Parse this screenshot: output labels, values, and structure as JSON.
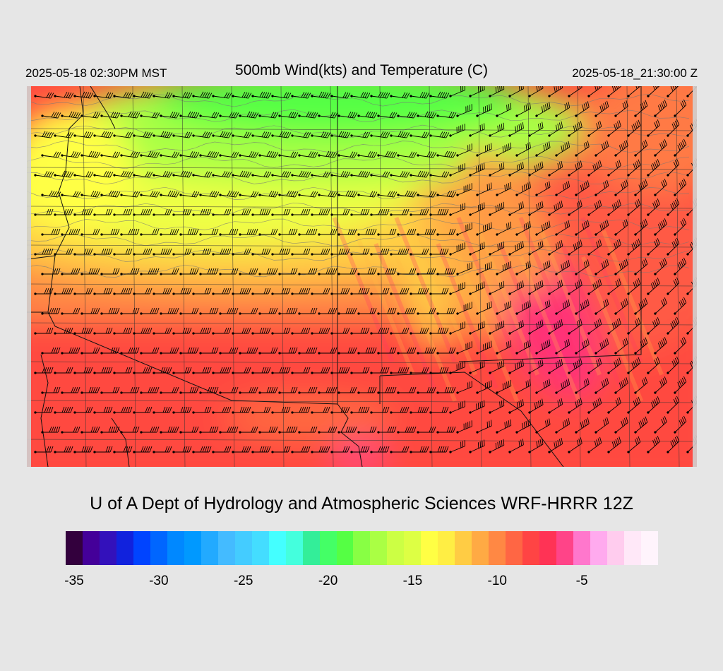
{
  "header": {
    "local_time": "2025-05-18 02:30PM MST",
    "title": "500mb Wind(kts) and Temperature (C)",
    "valid_time": "2025-05-18_21:30:00 Z"
  },
  "map": {
    "field": "500mb temperature (C) with wind barbs (kts)",
    "temperature_range_c": [
      -22,
      -5
    ],
    "background_regions": [
      {
        "region": "north-central",
        "temp_c": -20,
        "color": "#66ff44"
      },
      {
        "region": "north-west",
        "temp_c": -16,
        "color": "#ddff44"
      },
      {
        "region": "central",
        "temp_c": -12,
        "color": "#ffaa44"
      },
      {
        "region": "south",
        "temp_c": -9,
        "color": "#ff4444"
      },
      {
        "region": "east-band",
        "temp_c": -7,
        "color": "#ff3366"
      }
    ]
  },
  "credit": "U of A Dept of Hydrology and Atmospheric Sciences WRF-HRRR 12Z",
  "colorbar": {
    "colors": [
      "#33003d",
      "#440099",
      "#3311bb",
      "#1122dd",
      "#0044ff",
      "#0066ff",
      "#0088ff",
      "#0099ff",
      "#22aaff",
      "#44bbff",
      "#44ccff",
      "#44ddff",
      "#44ffff",
      "#44ffdd",
      "#33ee99",
      "#44ff66",
      "#55ff44",
      "#88ff44",
      "#aaff44",
      "#ccff44",
      "#ddff44",
      "#ffff44",
      "#ffee44",
      "#ffcc44",
      "#ffaa44",
      "#ff8844",
      "#ff6644",
      "#ff4444",
      "#ff3355",
      "#ff4488",
      "#ff77cc",
      "#ffaaee",
      "#ffccee",
      "#ffe8f8",
      "#fff4fc"
    ],
    "tick_labels": [
      {
        "label": "-35",
        "index": 0
      },
      {
        "label": "-30",
        "index": 5
      },
      {
        "label": "-25",
        "index": 10
      },
      {
        "label": "-20",
        "index": 15
      },
      {
        "label": "-15",
        "index": 20
      },
      {
        "label": "-10",
        "index": 25
      },
      {
        "label": "-5",
        "index": 30
      }
    ]
  }
}
